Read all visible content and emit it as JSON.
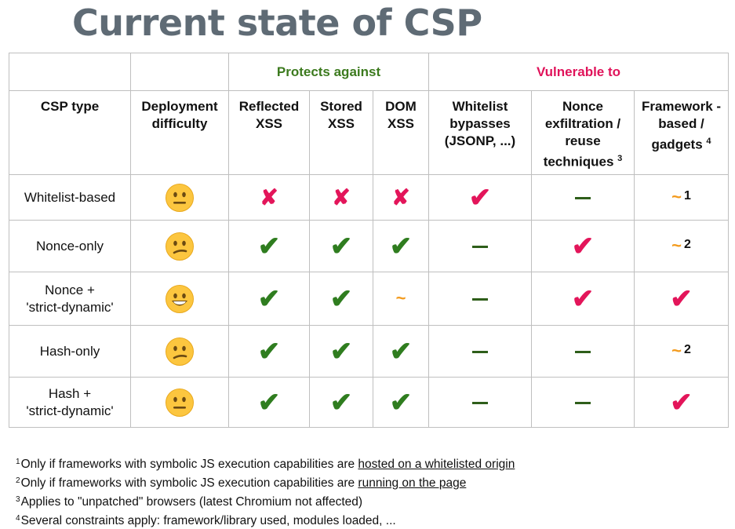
{
  "title": "Current state of CSP",
  "groups": {
    "protects": "Protects against",
    "vulnerable": "Vulnerable to"
  },
  "columns": {
    "csp_type": "CSP type",
    "deployment": "Deployment difficulty",
    "reflected": "Reflected XSS",
    "stored": "Stored XSS",
    "dom": "DOM XSS",
    "whitelist": "Whitelist bypasses (JSONP, ...)",
    "nonce_exfil": "Nonce exfiltration / reuse techniques",
    "nonce_exfil_note": "3",
    "framework": "Framework -based / gadgets",
    "framework_note": "4"
  },
  "rows": [
    {
      "label": "Whitelist-based",
      "difficulty": "neutral",
      "reflected": "cross",
      "stored": "cross",
      "dom": "cross",
      "whitelist": "check-red",
      "nonce": "dash",
      "framework": "tilde",
      "framework_note": "1"
    },
    {
      "label": "Nonce-only",
      "difficulty": "confused",
      "reflected": "check-green",
      "stored": "check-green",
      "dom": "check-green",
      "whitelist": "dash",
      "nonce": "check-red",
      "framework": "tilde",
      "framework_note": "2"
    },
    {
      "label_line1": "Nonce +",
      "label_line2": "'strict-dynamic'",
      "difficulty": "grinning",
      "reflected": "check-green",
      "stored": "check-green",
      "dom": "tilde",
      "whitelist": "dash",
      "nonce": "check-red",
      "framework": "check-red"
    },
    {
      "label": "Hash-only",
      "difficulty": "confused",
      "reflected": "check-green",
      "stored": "check-green",
      "dom": "check-green",
      "whitelist": "dash",
      "nonce": "dash",
      "framework": "tilde",
      "framework_note": "2"
    },
    {
      "label_line1": "Hash +",
      "label_line2": "'strict-dynamic'",
      "difficulty": "neutral",
      "reflected": "check-green",
      "stored": "check-green",
      "dom": "check-green",
      "whitelist": "dash",
      "nonce": "dash",
      "framework": "check-red"
    }
  ],
  "symbols": {
    "check": "✔",
    "cross": "✘",
    "tilde": "~"
  },
  "colors": {
    "green": "#2f7d1f",
    "red": "#e3155a",
    "orange": "#f39a1c",
    "title": "#5f6b75"
  },
  "footnotes": [
    {
      "num": "1",
      "text": "Only if frameworks with symbolic JS execution capabilities are ",
      "link": "hosted on a whitelisted origin"
    },
    {
      "num": "2",
      "text": "Only if frameworks with symbolic JS execution capabilities are ",
      "link": "running on the page"
    },
    {
      "num": "3",
      "text": "Applies to \"unpatched\" browsers (latest Chromium not affected)",
      "link": ""
    },
    {
      "num": "4",
      "text": "Several constraints apply: framework/library used, modules loaded, ...",
      "link": ""
    }
  ]
}
